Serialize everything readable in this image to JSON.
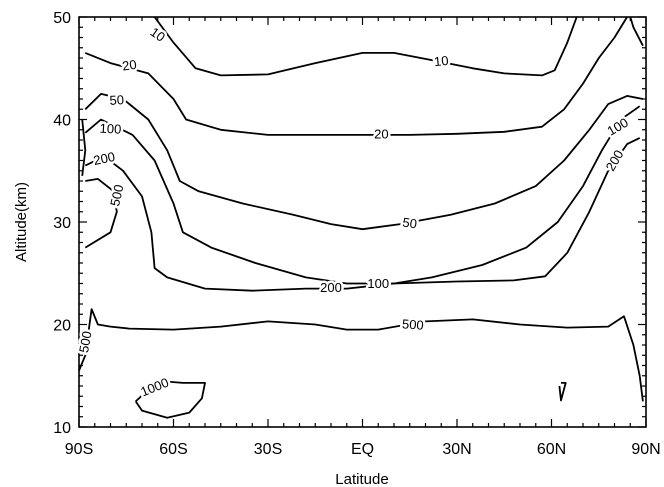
{
  "chart_data": {
    "type": "contour",
    "xlabel": "Latitude",
    "ylabel": "Altitude(km)",
    "xlim": [
      -90,
      90
    ],
    "ylim": [
      10,
      50
    ],
    "x_ticks": [
      -90,
      -60,
      -30,
      0,
      30,
      60,
      90
    ],
    "x_tick_labels": [
      "90S",
      "60S",
      "30S",
      "EQ",
      "30N",
      "60N",
      "90N"
    ],
    "y_ticks": [
      10,
      20,
      30,
      40,
      50
    ],
    "y_tick_labels": [
      "10",
      "20",
      "30",
      "40",
      "50"
    ],
    "contours": [
      {
        "level": "10",
        "lines": [
          [
            [
              -66,
              50
            ],
            [
              -60,
              47.5
            ],
            [
              -53,
              45
            ],
            [
              -45,
              44.3
            ],
            [
              -30,
              44.4
            ],
            [
              -15,
              45.5
            ],
            [
              0,
              46.5
            ],
            [
              10,
              46.5
            ],
            [
              22,
              45.8
            ],
            [
              35,
              45
            ],
            [
              45,
              44.5
            ],
            [
              57,
              44.3
            ],
            [
              61,
              44.8
            ],
            [
              65,
              47.5
            ],
            [
              68,
              50
            ]
          ],
          [
            [
              85,
              50
            ],
            [
              86,
              49
            ],
            [
              89,
              47.2
            ]
          ]
        ],
        "labels": [
          {
            "text": "10",
            "x": -65,
            "y": 48.3,
            "angle": 35
          },
          {
            "text": "10",
            "x": 25,
            "y": 45.7,
            "angle": -6
          }
        ]
      },
      {
        "level": "20",
        "lines": [
          [
            [
              -88,
              46.5
            ],
            [
              -80,
              45.5
            ],
            [
              -68,
              44.5
            ],
            [
              -60,
              42
            ],
            [
              -56,
              40
            ],
            [
              -45,
              39
            ],
            [
              -30,
              38.5
            ],
            [
              -15,
              38.5
            ],
            [
              0,
              38.5
            ],
            [
              15,
              38.5
            ],
            [
              30,
              38.6
            ],
            [
              45,
              38.8
            ],
            [
              57,
              39.3
            ],
            [
              64,
              41
            ],
            [
              70,
              43.5
            ],
            [
              75,
              46
            ],
            [
              80,
              48
            ],
            [
              84,
              50
            ]
          ]
        ],
        "labels": [
          {
            "text": "20",
            "x": -74,
            "y": 45.3,
            "angle": -8
          },
          {
            "text": "20",
            "x": 6,
            "y": 38.6,
            "angle": 0
          }
        ]
      },
      {
        "level": "50",
        "lines": [
          [
            [
              -88,
              41
            ],
            [
              -83,
              42.5
            ],
            [
              -76,
              42
            ],
            [
              -68,
              40
            ],
            [
              -62,
              37
            ],
            [
              -58,
              34
            ],
            [
              -52,
              33
            ],
            [
              -38,
              31.8
            ],
            [
              -22,
              30.7
            ],
            [
              -10,
              29.8
            ],
            [
              0,
              29.3
            ],
            [
              12,
              29.8
            ],
            [
              28,
              30.7
            ],
            [
              42,
              31.8
            ],
            [
              55,
              33.5
            ],
            [
              64,
              36
            ],
            [
              72,
              39
            ],
            [
              78,
              41.5
            ],
            [
              84,
              42.3
            ],
            [
              89,
              42
            ]
          ]
        ],
        "labels": [
          {
            "text": "50",
            "x": -78,
            "y": 41.9,
            "angle": -3
          },
          {
            "text": "50",
            "x": 15,
            "y": 29.9,
            "angle": 8
          }
        ]
      },
      {
        "level": "100",
        "lines": [
          [
            [
              -88,
              38.7
            ],
            [
              -83,
              40
            ],
            [
              -73,
              38.5
            ],
            [
              -66,
              36
            ],
            [
              -60,
              31.8
            ],
            [
              -57,
              29
            ],
            [
              -48,
              27.5
            ],
            [
              -34,
              26
            ],
            [
              -18,
              24.6
            ],
            [
              -5,
              24
            ],
            [
              10,
              24
            ],
            [
              22,
              24.6
            ],
            [
              38,
              25.8
            ],
            [
              52,
              27.5
            ],
            [
              62,
              30
            ],
            [
              70,
              33.5
            ],
            [
              76,
              37
            ],
            [
              82,
              40
            ],
            [
              88,
              41.3
            ]
          ]
        ],
        "labels": [
          {
            "text": "100",
            "x": -80,
            "y": 39.1,
            "angle": 3
          },
          {
            "text": "100",
            "x": 5,
            "y": 24,
            "angle": 0
          },
          {
            "text": "100",
            "x": 81,
            "y": 39.3,
            "angle": -30
          }
        ]
      },
      {
        "level": "200",
        "lines": [
          [
            [
              -88,
              35.5
            ],
            [
              -82,
              36.4
            ],
            [
              -76,
              35
            ],
            [
              -70,
              32.5
            ],
            [
              -67,
              29
            ],
            [
              -66,
              25.5
            ],
            [
              -62,
              24.6
            ],
            [
              -50,
              23.5
            ],
            [
              -35,
              23.3
            ],
            [
              -18,
              23.5
            ],
            [
              -5,
              23.5
            ],
            [
              10,
              24
            ],
            [
              30,
              24.2
            ],
            [
              48,
              24.3
            ],
            [
              58,
              24.7
            ],
            [
              65,
              27
            ],
            [
              72,
              31
            ],
            [
              78,
              35
            ],
            [
              84,
              37.6
            ],
            [
              88,
              38.2
            ]
          ]
        ],
        "labels": [
          {
            "text": "200",
            "x": -82,
            "y": 36.2,
            "angle": -12
          },
          {
            "text": "200",
            "x": -10,
            "y": 23.6,
            "angle": 0
          },
          {
            "text": "200",
            "x": 80,
            "y": 36,
            "angle": -60
          }
        ]
      },
      {
        "level": "500",
        "lines": [
          [
            [
              -88,
              27.5
            ],
            [
              -80,
              29
            ],
            [
              -78,
              31
            ],
            [
              -79,
              33
            ],
            [
              -84,
              34.2
            ],
            [
              -88,
              34
            ]
          ],
          [
            [
              -89,
              34.5
            ],
            [
              -88,
              37
            ],
            [
              -89,
              40
            ]
          ],
          [
            [
              -90,
              15.5
            ],
            [
              -88,
              17
            ],
            [
              -86,
              21.5
            ],
            [
              -84,
              20
            ],
            [
              -80,
              19.8
            ],
            [
              -74,
              19.6
            ],
            [
              -60,
              19.5
            ],
            [
              -45,
              19.8
            ],
            [
              -30,
              20.3
            ],
            [
              -15,
              20
            ],
            [
              -5,
              19.5
            ],
            [
              5,
              19.5
            ],
            [
              20,
              20.3
            ],
            [
              35,
              20.5
            ],
            [
              50,
              20
            ],
            [
              65,
              19.7
            ],
            [
              78,
              19.8
            ],
            [
              83,
              20.8
            ],
            [
              86,
              18
            ],
            [
              88,
              15
            ],
            [
              89,
              12.5
            ]
          ]
        ],
        "labels": [
          {
            "text": "500",
            "x": -78,
            "y": 32.6,
            "angle": -78
          },
          {
            "text": "500",
            "x": -88,
            "y": 18.3,
            "angle": -80
          },
          {
            "text": "500",
            "x": 16,
            "y": 20,
            "angle": 4
          }
        ]
      },
      {
        "level": "1000",
        "lines": [
          [
            [
              -72,
              12.5
            ],
            [
              -65,
              14.5
            ],
            [
              -57,
              14.3
            ],
            [
              -50,
              14.3
            ],
            [
              -51,
              12.8
            ],
            [
              -55,
              11.4
            ],
            [
              -62,
              10.9
            ],
            [
              -70,
              11.6
            ],
            [
              -72,
              12.5
            ]
          ],
          [
            [
              63,
              14.3
            ],
            [
              64.5,
              14.3
            ],
            [
              63,
              12.6
            ],
            [
              62.5,
              14
            ]
          ]
        ],
        "labels": [
          {
            "text": "1000",
            "x": -66,
            "y": 13.9,
            "angle": -22
          }
        ]
      }
    ]
  }
}
